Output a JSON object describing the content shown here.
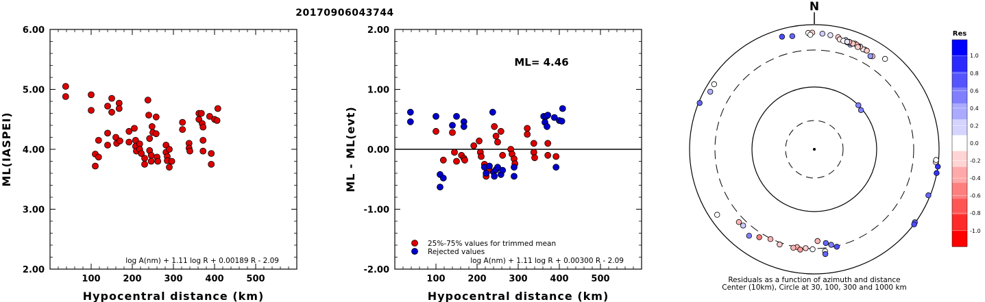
{
  "title": "20170906043744",
  "chart_data": [
    {
      "type": "scatter",
      "xlabel": "Hypocentral distance (km)",
      "ylabel": "ML(IASPEI)",
      "xlim": [
        0,
        600
      ],
      "ylim": [
        2.0,
        6.0
      ],
      "x_ticks": [
        "100",
        "200",
        "300",
        "400",
        "500"
      ],
      "y_ticks": [
        "2.00",
        "3.00",
        "4.00",
        "5.00",
        "6.00"
      ],
      "formula": "log A(nm) + 1.11 log R + 0.00189 R - 2.09",
      "series": [
        {
          "color": "#dd0000",
          "points": [
            [
              38,
              5.05
            ],
            [
              38,
              4.88
            ],
            [
              100,
              4.91
            ],
            [
              100,
              4.65
            ],
            [
              110,
              3.92
            ],
            [
              110,
              3.72
            ],
            [
              118,
              4.15
            ],
            [
              118,
              3.87
            ],
            [
              140,
              4.72
            ],
            [
              140,
              4.27
            ],
            [
              140,
              4.07
            ],
            [
              150,
              4.85
            ],
            [
              150,
              4.62
            ],
            [
              160,
              4.2
            ],
            [
              162,
              4.1
            ],
            [
              168,
              4.77
            ],
            [
              168,
              4.68
            ],
            [
              170,
              4.14
            ],
            [
              192,
              4.3
            ],
            [
              192,
              4.12
            ],
            [
              205,
              4.35
            ],
            [
              208,
              4.15
            ],
            [
              208,
              4.05
            ],
            [
              210,
              3.97
            ],
            [
              218,
              4.09
            ],
            [
              218,
              4.0
            ],
            [
              222,
              3.93
            ],
            [
              230,
              3.85
            ],
            [
              230,
              3.75
            ],
            [
              238,
              4.82
            ],
            [
              240,
              4.57
            ],
            [
              242,
              4.18
            ],
            [
              242,
              3.98
            ],
            [
              246,
              3.9
            ],
            [
              246,
              3.8
            ],
            [
              248,
              4.38
            ],
            [
              250,
              4.28
            ],
            [
              258,
              4.54
            ],
            [
              258,
              4.26
            ],
            [
              260,
              3.87
            ],
            [
              262,
              3.8
            ],
            [
              282,
              4.07
            ],
            [
              282,
              3.95
            ],
            [
              285,
              3.88
            ],
            [
              285,
              3.81
            ],
            [
              290,
              4.0
            ],
            [
              290,
              3.7
            ],
            [
              296,
              3.8
            ],
            [
              322,
              4.45
            ],
            [
              322,
              4.33
            ],
            [
              338,
              4.1
            ],
            [
              338,
              4.02
            ],
            [
              340,
              3.97
            ],
            [
              362,
              4.6
            ],
            [
              362,
              4.5
            ],
            [
              368,
              4.6
            ],
            [
              370,
              4.43
            ],
            [
              372,
              4.37
            ],
            [
              372,
              4.15
            ],
            [
              372,
              3.97
            ],
            [
              388,
              4.55
            ],
            [
              392,
              3.93
            ],
            [
              392,
              3.75
            ],
            [
              400,
              4.5
            ],
            [
              406,
              4.48
            ],
            [
              408,
              4.68
            ]
          ]
        }
      ]
    },
    {
      "type": "scatter",
      "xlabel": "Hypocentral distance (km)",
      "ylabel": "ML - ML(evt)",
      "xlim": [
        0,
        600
      ],
      "ylim": [
        -2.0,
        2.0
      ],
      "x_ticks": [
        "100",
        "200",
        "300",
        "400",
        "500"
      ],
      "y_ticks": [
        "-2.00",
        "-1.00",
        "0.00",
        "1.00",
        "2.00"
      ],
      "annotation": "ML= 4.46",
      "formula": "log A(nm) + 1.11 log R + 0.00300 R - 2.09",
      "legend": [
        "25%-75% values for trimmed mean",
        "Rejected values"
      ],
      "series": [
        {
          "name": "25%-75% values for trimmed mean",
          "color": "#dd0000",
          "points": [
            [
              100,
              0.3
            ],
            [
              118,
              -0.18
            ],
            [
              140,
              0.28
            ],
            [
              145,
              -0.05
            ],
            [
              150,
              -0.2
            ],
            [
              162,
              -0.1
            ],
            [
              168,
              -0.15
            ],
            [
              170,
              -0.18
            ],
            [
              192,
              0.06
            ],
            [
              205,
              0.14
            ],
            [
              208,
              -0.05
            ],
            [
              210,
              -0.12
            ],
            [
              218,
              -0.25
            ],
            [
              222,
              -0.45
            ],
            [
              230,
              -0.35
            ],
            [
              242,
              0.38
            ],
            [
              246,
              0.22
            ],
            [
              250,
              0.12
            ],
            [
              258,
              0.3
            ],
            [
              262,
              -0.1
            ],
            [
              282,
              0.0
            ],
            [
              285,
              -0.08
            ],
            [
              290,
              -0.16
            ],
            [
              292,
              -0.24
            ],
            [
              322,
              0.35
            ],
            [
              322,
              0.25
            ],
            [
              338,
              0.1
            ],
            [
              338,
              -0.05
            ],
            [
              340,
              -0.14
            ],
            [
              372,
              0.1
            ],
            [
              372,
              -0.1
            ],
            [
              392,
              -0.12
            ]
          ]
        },
        {
          "name": "Rejected values",
          "color": "#0000cc",
          "points": [
            [
              38,
              0.62
            ],
            [
              38,
              0.46
            ],
            [
              100,
              0.55
            ],
            [
              110,
              -0.42
            ],
            [
              110,
              -0.63
            ],
            [
              118,
              -0.48
            ],
            [
              140,
              0.4
            ],
            [
              150,
              0.55
            ],
            [
              168,
              0.46
            ],
            [
              168,
              0.38
            ],
            [
              218,
              -0.3
            ],
            [
              222,
              -0.4
            ],
            [
              230,
              -0.28
            ],
            [
              238,
              0.62
            ],
            [
              240,
              -0.38
            ],
            [
              242,
              -0.45
            ],
            [
              246,
              -0.34
            ],
            [
              250,
              -0.3
            ],
            [
              258,
              -0.42
            ],
            [
              262,
              -0.35
            ],
            [
              290,
              -0.3
            ],
            [
              290,
              -0.45
            ],
            [
              362,
              0.55
            ],
            [
              365,
              0.45
            ],
            [
              368,
              0.55
            ],
            [
              370,
              0.38
            ],
            [
              372,
              0.57
            ],
            [
              388,
              0.53
            ],
            [
              392,
              -0.3
            ],
            [
              400,
              0.48
            ],
            [
              406,
              0.47
            ],
            [
              408,
              0.68
            ]
          ]
        }
      ]
    },
    {
      "type": "scatter",
      "subtype": "polar",
      "north_label": "N",
      "caption": [
        "Residuals as a function of azimuth and distance",
        "Center (10km), Circle at 30, 100, 300 and 1000 km"
      ],
      "colorbar": {
        "title": "Res",
        "ticks": [
          "1.0",
          "0.8",
          "0.6",
          "0.4",
          "0.2",
          "0.0",
          "-0.2",
          "-0.4",
          "-0.6",
          "-0.8",
          "-1.0"
        ],
        "colors": [
          "#0000ff",
          "#2a2aff",
          "#5555ff",
          "#7f7fff",
          "#aaaaff",
          "#d4d4ff",
          "#ffffff",
          "#ffd4d4",
          "#ffaaaa",
          "#ff7f7f",
          "#ff5555",
          "#ff2a2a",
          "#ff0000"
        ]
      },
      "points": [
        {
          "az": 21,
          "dist": 580,
          "res": 0.0
        },
        {
          "az": 16,
          "dist": 590,
          "res": 0.2
        },
        {
          "az": 27,
          "dist": 540,
          "res": -0.3
        },
        {
          "az": 12,
          "dist": 620,
          "res": -0.2
        },
        {
          "az": 19,
          "dist": 515,
          "res": 0.3
        },
        {
          "az": 26,
          "dist": 530,
          "res": -0.1
        },
        {
          "az": 8,
          "dist": 640,
          "res": 0.1
        },
        {
          "az": 4,
          "dist": 660,
          "res": 0.2
        },
        {
          "az": -3,
          "dist": 680,
          "res": 0.0
        },
        {
          "az": -1,
          "dist": 685,
          "res": -0.2
        },
        {
          "az": -11,
          "dist": 640,
          "res": 0.6
        },
        {
          "az": 24,
          "dist": 560,
          "res": -0.2
        },
        {
          "az": 17,
          "dist": 545,
          "res": 0.0
        },
        {
          "az": 19,
          "dist": 555,
          "res": -0.3
        },
        {
          "az": 23,
          "dist": 550,
          "res": -0.3
        },
        {
          "az": 28,
          "dist": 540,
          "res": -0.2
        },
        {
          "az": 13,
          "dist": 570,
          "res": -0.1
        },
        {
          "az": 22,
          "dist": 570,
          "res": -0.3
        },
        {
          "az": 32,
          "dist": 490,
          "res": -0.2
        },
        {
          "az": 15,
          "dist": 555,
          "res": 0.0
        },
        {
          "az": 20,
          "dist": 565,
          "res": -0.2
        },
        {
          "az": 18,
          "dist": 575,
          "res": -0.3
        },
        {
          "az": 23,
          "dist": 525,
          "res": -0.2
        },
        {
          "az": 38,
          "dist": 625,
          "res": 0.0
        },
        {
          "az": 17,
          "dist": 560,
          "res": 0.1
        },
        {
          "az": 31,
          "dist": 470,
          "res": 0.4
        },
        {
          "az": 45,
          "dist": 100,
          "res": 0.5
        },
        {
          "az": 50,
          "dist": 95,
          "res": 0.5
        },
        {
          "az": 96,
          "dist": 880,
          "res": -0.1
        },
        {
          "az": 95,
          "dist": 890,
          "res": 0.0
        },
        {
          "az": 98,
          "dist": 1000,
          "res": 0.8
        },
        {
          "az": 101,
          "dist": 990,
          "res": 0.8
        },
        {
          "az": 126,
          "dist": 980,
          "res": 0.6
        },
        {
          "az": 127,
          "dist": 1010,
          "res": 0.7
        },
        {
          "az": 112,
          "dist": 920,
          "res": 0.6
        },
        {
          "az": 178,
          "dist": 240,
          "res": -0.3
        },
        {
          "az": 170,
          "dist": 280,
          "res": 0.5
        },
        {
          "az": 173,
          "dist": 260,
          "res": 0.6
        },
        {
          "az": 174,
          "dist": 350,
          "res": 0.0
        },
        {
          "az": 167,
          "dist": 310,
          "res": 0.7
        },
        {
          "az": 181,
          "dist": 310,
          "res": 0.0
        },
        {
          "az": 174,
          "dist": 400,
          "res": 0.6
        },
        {
          "az": 185,
          "dist": 300,
          "res": -0.2
        },
        {
          "az": 190,
          "dist": 300,
          "res": -0.3
        },
        {
          "az": 188,
          "dist": 330,
          "res": -0.4
        },
        {
          "az": 192,
          "dist": 320,
          "res": -0.3
        },
        {
          "az": 200,
          "dist": 330,
          "res": -0.2
        },
        {
          "az": 206,
          "dist": 310,
          "res": -0.3
        },
        {
          "az": 212,
          "dist": 370,
          "res": -0.5
        },
        {
          "az": 217,
          "dist": 460,
          "res": 0.5
        },
        {
          "az": 223,
          "dist": 380,
          "res": 0.2
        },
        {
          "az": 226,
          "dist": 390,
          "res": -0.3
        },
        {
          "az": 236,
          "dist": 700,
          "res": 0.0
        },
        {
          "az": 292,
          "dist": 950,
          "res": 0.6
        },
        {
          "az": 299,
          "dist": 760,
          "res": 0.3
        },
        {
          "az": 303,
          "dist": 780,
          "res": 0.0
        },
        {
          "az": 344,
          "dist": 700,
          "res": 0.7
        },
        {
          "az": 358,
          "dist": 620,
          "res": 0.0
        }
      ]
    }
  ]
}
